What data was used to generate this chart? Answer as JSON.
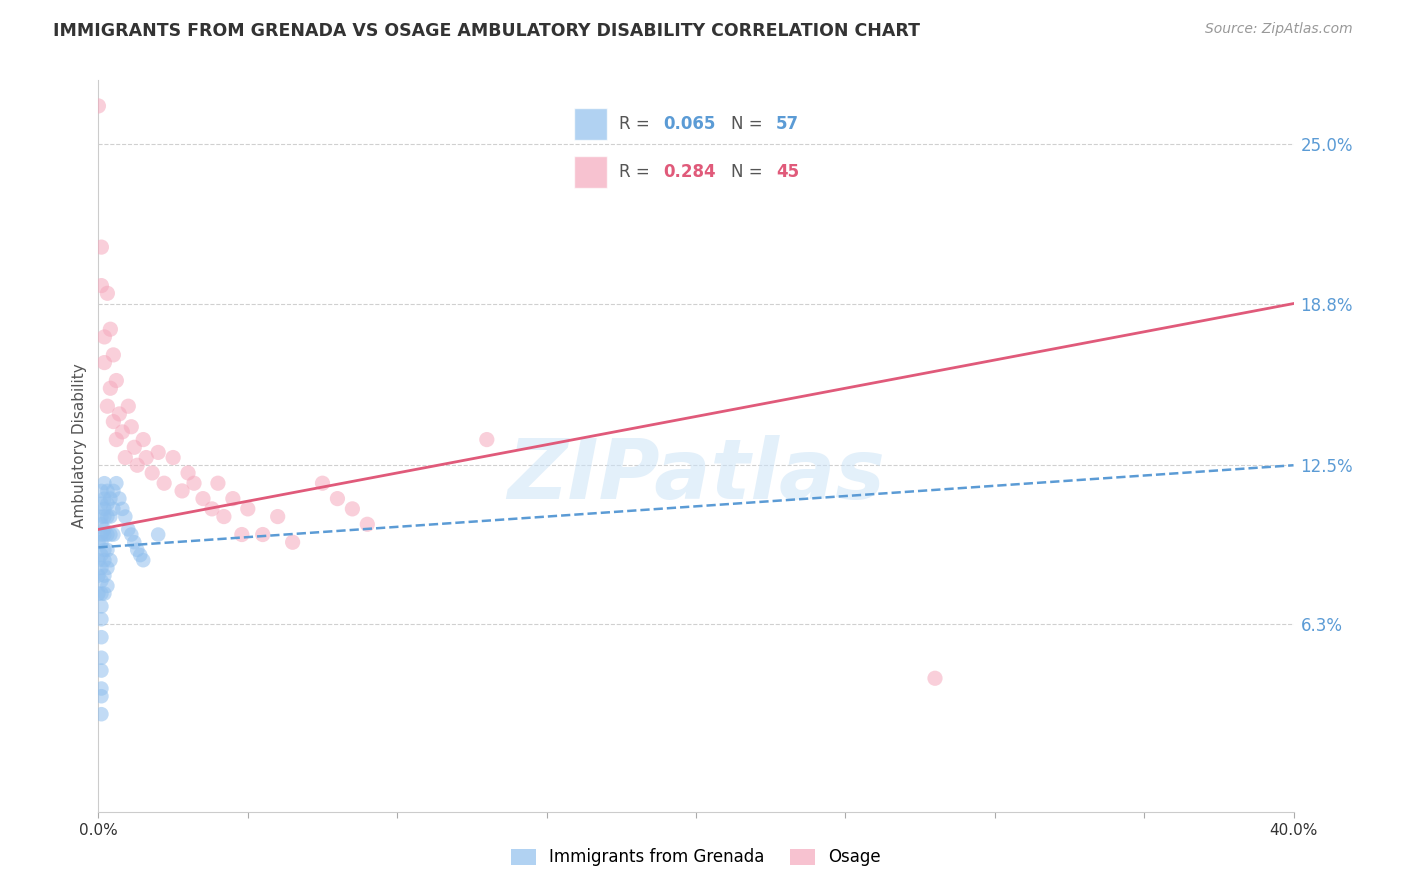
{
  "title": "IMMIGRANTS FROM GRENADA VS OSAGE AMBULATORY DISABILITY CORRELATION CHART",
  "source": "Source: ZipAtlas.com",
  "ylabel": "Ambulatory Disability",
  "ytick_labels": [
    "6.3%",
    "12.5%",
    "18.8%",
    "25.0%"
  ],
  "ytick_values": [
    0.063,
    0.125,
    0.188,
    0.25
  ],
  "xtick_labels": [
    "0.0%",
    "",
    "",
    "",
    "",
    "",
    "",
    "",
    "40.0%"
  ],
  "xtick_values": [
    0.0,
    0.05,
    0.1,
    0.15,
    0.2,
    0.25,
    0.3,
    0.35,
    0.4
  ],
  "xmin": 0.0,
  "xmax": 0.4,
  "ymin": -0.01,
  "ymax": 0.275,
  "legend_label_blue": "Immigrants from Grenada",
  "legend_label_pink": "Osage",
  "blue_color": "#90bfed",
  "pink_color": "#f5a8bc",
  "trendline_blue_color": "#5b9bd5",
  "trendline_pink_color": "#e05a7a",
  "watermark": "ZIPatlas",
  "blue_scatter_x": [
    0.0,
    0.0,
    0.0,
    0.0,
    0.001,
    0.001,
    0.001,
    0.001,
    0.001,
    0.001,
    0.001,
    0.001,
    0.001,
    0.001,
    0.001,
    0.001,
    0.001,
    0.001,
    0.001,
    0.001,
    0.001,
    0.001,
    0.002,
    0.002,
    0.002,
    0.002,
    0.002,
    0.002,
    0.002,
    0.002,
    0.002,
    0.002,
    0.003,
    0.003,
    0.003,
    0.003,
    0.003,
    0.003,
    0.003,
    0.004,
    0.004,
    0.004,
    0.004,
    0.005,
    0.005,
    0.005,
    0.006,
    0.007,
    0.008,
    0.009,
    0.01,
    0.011,
    0.012,
    0.013,
    0.014,
    0.015,
    0.02
  ],
  "blue_scatter_y": [
    0.095,
    0.088,
    0.082,
    0.075,
    0.115,
    0.11,
    0.105,
    0.102,
    0.098,
    0.095,
    0.09,
    0.085,
    0.08,
    0.075,
    0.07,
    0.065,
    0.058,
    0.05,
    0.045,
    0.038,
    0.035,
    0.028,
    0.118,
    0.112,
    0.108,
    0.105,
    0.1,
    0.098,
    0.092,
    0.088,
    0.082,
    0.075,
    0.115,
    0.11,
    0.105,
    0.098,
    0.092,
    0.085,
    0.078,
    0.112,
    0.105,
    0.098,
    0.088,
    0.115,
    0.108,
    0.098,
    0.118,
    0.112,
    0.108,
    0.105,
    0.1,
    0.098,
    0.095,
    0.092,
    0.09,
    0.088,
    0.098
  ],
  "pink_scatter_x": [
    0.0,
    0.001,
    0.001,
    0.002,
    0.002,
    0.003,
    0.003,
    0.004,
    0.004,
    0.005,
    0.005,
    0.006,
    0.006,
    0.007,
    0.008,
    0.009,
    0.01,
    0.011,
    0.012,
    0.013,
    0.015,
    0.016,
    0.018,
    0.02,
    0.022,
    0.025,
    0.028,
    0.03,
    0.032,
    0.035,
    0.038,
    0.04,
    0.042,
    0.045,
    0.048,
    0.05,
    0.055,
    0.06,
    0.065,
    0.075,
    0.08,
    0.085,
    0.09,
    0.13,
    0.28
  ],
  "pink_scatter_y": [
    0.265,
    0.21,
    0.195,
    0.175,
    0.165,
    0.192,
    0.148,
    0.178,
    0.155,
    0.168,
    0.142,
    0.158,
    0.135,
    0.145,
    0.138,
    0.128,
    0.148,
    0.14,
    0.132,
    0.125,
    0.135,
    0.128,
    0.122,
    0.13,
    0.118,
    0.128,
    0.115,
    0.122,
    0.118,
    0.112,
    0.108,
    0.118,
    0.105,
    0.112,
    0.098,
    0.108,
    0.098,
    0.105,
    0.095,
    0.118,
    0.112,
    0.108,
    0.102,
    0.135,
    0.042
  ],
  "pink_trendline_start_y": 0.1,
  "pink_trendline_end_y": 0.188,
  "blue_trendline_start_y": 0.093,
  "blue_trendline_end_y": 0.125
}
